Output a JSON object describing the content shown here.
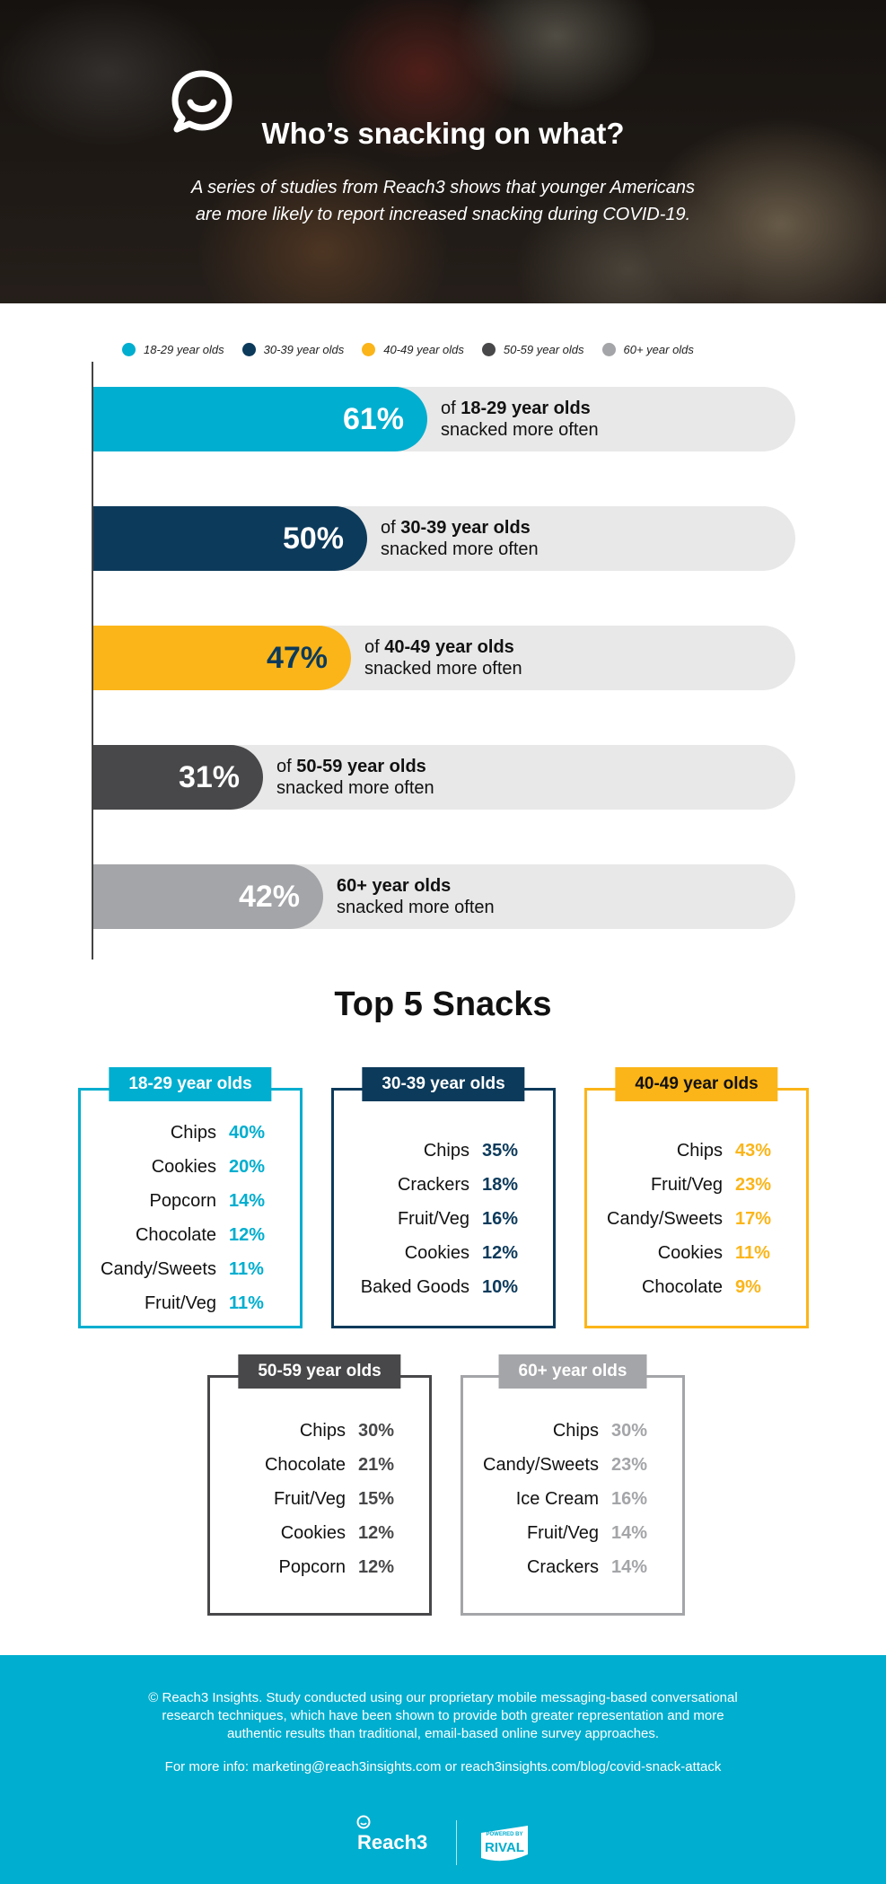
{
  "header": {
    "title": "Who’s snacking on what?",
    "subtitle_line1": "A series of studies from Reach3 shows that younger Americans",
    "subtitle_line2": "are more likely to report increased snacking during COVID-19."
  },
  "colors": {
    "age_18_29": "#00aecf",
    "age_30_39": "#0c3a5b",
    "age_40_49": "#fbb519",
    "age_50_59": "#48484a",
    "age_60_plus": "#a4a5a8",
    "track": "#e8e8e8"
  },
  "chart_data": {
    "type": "bar",
    "orientation": "horizontal",
    "categories": [
      "18-29 year olds",
      "30-39 year olds",
      "40-49 year olds",
      "50-59 year olds",
      "60+ year olds"
    ],
    "values": [
      61,
      50,
      47,
      31,
      42
    ],
    "value_labels": [
      "61%",
      "50%",
      "47%",
      "31%",
      "42%"
    ],
    "descriptions": [
      {
        "prefix": "of ",
        "group": "18-29 year olds",
        "suffix": "snacked more often"
      },
      {
        "prefix": "of ",
        "group": "30-39 year olds",
        "suffix": "snacked more often"
      },
      {
        "prefix": "of ",
        "group": "40-49 year olds",
        "suffix": "snacked more often"
      },
      {
        "prefix": "of ",
        "group": "50-59 year olds",
        "suffix": "snacked more often"
      },
      {
        "prefix": "",
        "group": "60+ year olds",
        "suffix": "snacked more often"
      }
    ],
    "xlim": [
      0,
      100
    ],
    "legend": [
      "18-29 year olds",
      "30-39 year olds",
      "40-49 year olds",
      "50-59 year olds",
      "60+ year olds"
    ],
    "legend_position": "top"
  },
  "top5": {
    "title": "Top 5 Snacks",
    "groups": [
      {
        "label": "18-29 year olds",
        "items": [
          {
            "name": "Chips",
            "pct": "40%"
          },
          {
            "name": "Cookies",
            "pct": "20%"
          },
          {
            "name": "Popcorn",
            "pct": "14%"
          },
          {
            "name": "Chocolate",
            "pct": "12%"
          },
          {
            "name": "Candy/Sweets",
            "pct": "11%"
          },
          {
            "name": "Fruit/Veg",
            "pct": "11%"
          }
        ]
      },
      {
        "label": "30-39 year olds",
        "items": [
          {
            "name": "Chips",
            "pct": "35%"
          },
          {
            "name": "Crackers",
            "pct": "18%"
          },
          {
            "name": "Fruit/Veg",
            "pct": "16%"
          },
          {
            "name": "Cookies",
            "pct": "12%"
          },
          {
            "name": "Baked Goods",
            "pct": "10%"
          }
        ]
      },
      {
        "label": "40-49 year olds",
        "items": [
          {
            "name": "Chips",
            "pct": "43%"
          },
          {
            "name": "Fruit/Veg",
            "pct": "23%"
          },
          {
            "name": "Candy/Sweets",
            "pct": "17%"
          },
          {
            "name": "Cookies",
            "pct": "11%"
          },
          {
            "name": "Chocolate",
            "pct": "9%"
          }
        ]
      },
      {
        "label": "50-59 year olds",
        "items": [
          {
            "name": "Chips",
            "pct": "30%"
          },
          {
            "name": "Chocolate",
            "pct": "21%"
          },
          {
            "name": "Fruit/Veg",
            "pct": "15%"
          },
          {
            "name": "Cookies",
            "pct": "12%"
          },
          {
            "name": "Popcorn",
            "pct": "12%"
          }
        ]
      },
      {
        "label": "60+ year olds",
        "items": [
          {
            "name": "Chips",
            "pct": "30%"
          },
          {
            "name": "Candy/Sweets",
            "pct": "23%"
          },
          {
            "name": "Ice Cream",
            "pct": "16%"
          },
          {
            "name": "Fruit/Veg",
            "pct": "14%"
          },
          {
            "name": "Crackers",
            "pct": "14%"
          }
        ]
      }
    ]
  },
  "footer": {
    "note_line1": "© Reach3 Insights. Study conducted using our proprietary mobile messaging-based conversational",
    "note_line2": "research techniques, which have been shown to provide both greater representation and more",
    "note_line3": "authentic results than traditional, email-based online survey approaches.",
    "info": "For more info: marketing@reach3insights.com or reach3insights.com/blog/covid-snack-attack",
    "brand": "Reach3",
    "rival_top": "POWERED BY",
    "rival_bottom": "RIVAL"
  }
}
